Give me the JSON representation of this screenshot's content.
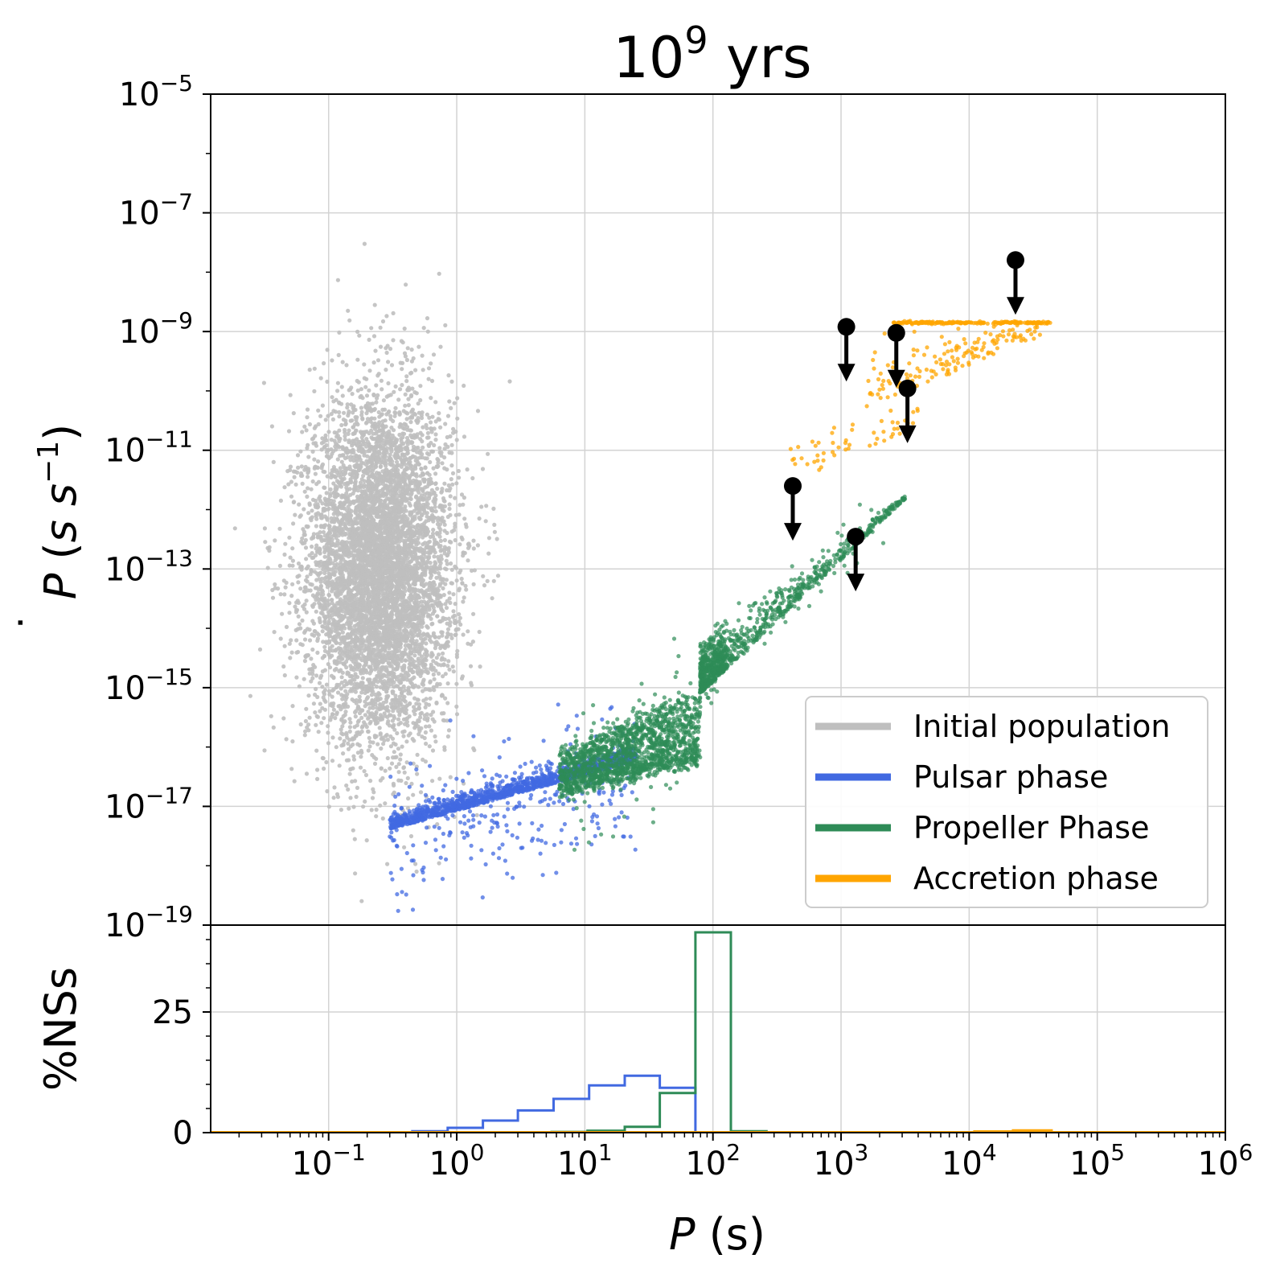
{
  "chart_data": {
    "title_base": "10",
    "title_exp": "9",
    "title_suffix": " yrs",
    "type": "scatter",
    "xlabel": {
      "var": "P",
      "unit": " (s)"
    },
    "ylabel_top": {
      "var": "P",
      "dot": "˙",
      "unit_open": " (",
      "unit": "s s",
      "unit_exp": "−1",
      "unit_close": ")"
    },
    "ylabel_bottom": "%NSs",
    "xlim": [
      0.012,
      1000000
    ],
    "ylim_top": [
      1e-19,
      1e-05
    ],
    "ylim_bottom": [
      0,
      43
    ],
    "x_ticks": [
      {
        "value": 0.1,
        "base": "10",
        "exp": "−1"
      },
      {
        "value": 1,
        "base": "10",
        "exp": "0"
      },
      {
        "value": 10,
        "base": "10",
        "exp": "1"
      },
      {
        "value": 100,
        "base": "10",
        "exp": "2"
      },
      {
        "value": 1000,
        "base": "10",
        "exp": "3"
      },
      {
        "value": 10000,
        "base": "10",
        "exp": "4"
      },
      {
        "value": 100000,
        "base": "10",
        "exp": "5"
      },
      {
        "value": 1000000,
        "base": "10",
        "exp": "6"
      }
    ],
    "y_ticks_top": [
      {
        "value": 1e-05,
        "base": "10",
        "exp": "−5"
      },
      {
        "value": 1e-07,
        "base": "10",
        "exp": "−7"
      },
      {
        "value": 1e-09,
        "base": "10",
        "exp": "−9"
      },
      {
        "value": 1e-11,
        "base": "10",
        "exp": "−11"
      },
      {
        "value": 1e-13,
        "base": "10",
        "exp": "−13"
      },
      {
        "value": 1e-15,
        "base": "10",
        "exp": "−15"
      },
      {
        "value": 1e-17,
        "base": "10",
        "exp": "−17"
      },
      {
        "value": 1e-19,
        "base": "10",
        "exp": "−19"
      }
    ],
    "y_ticks_bottom": [
      {
        "value": 0,
        "label": "0"
      },
      {
        "value": 25,
        "label": "25"
      }
    ],
    "legend": {
      "position": "lower-right",
      "entries": [
        {
          "label": "Initial population",
          "color": "#bfbfbf"
        },
        {
          "label": "Pulsar phase",
          "color": "#4169e1"
        },
        {
          "label": "Propeller Phase",
          "color": "#2e8b57"
        },
        {
          "label": "Accretion phase",
          "color": "#ffa500"
        }
      ]
    },
    "series": [
      {
        "name": "Initial population",
        "color": "#bfbfbf",
        "kind": "cloud",
        "logP_center": -0.6,
        "logP_sigma": 0.28,
        "logPdot_center": -13.0,
        "logPdot_sigma": 1.45,
        "count": 6500
      },
      {
        "name": "Pulsar phase",
        "color": "#4169e1",
        "kind": "band",
        "x_range": [
          0.3,
          25
        ],
        "pdot_range": [
          5e-18,
          3e-16
        ],
        "count": 1500
      },
      {
        "name": "Propeller Phase",
        "color": "#2e8b57",
        "kind": "band",
        "x_range": [
          6,
          4000
        ],
        "pdot_range": [
          2e-17,
          1e-11
        ],
        "count": 2600
      },
      {
        "name": "Accretion phase",
        "color": "#ffa500",
        "kind": "band",
        "x_range": [
          400,
          44000
        ],
        "pdot_range": [
          2e-11,
          1.4e-09
        ],
        "count": 420
      }
    ],
    "upper_limits": [
      {
        "P": 1100,
        "Pdot": 1.2e-09
      },
      {
        "P": 2700,
        "Pdot": 9.5e-10
      },
      {
        "P": 3300,
        "Pdot": 1.1e-10
      },
      {
        "P": 23000,
        "Pdot": 1.6e-08
      },
      {
        "P": 420,
        "Pdot": 2.5e-12
      },
      {
        "P": 1300,
        "Pdot": 3.5e-13
      }
    ],
    "histograms": [
      {
        "name": "Pulsar phase",
        "color": "#4169e1",
        "edges": [
          0.45,
          0.85,
          1.6,
          3.0,
          5.7,
          10.8,
          20.5,
          38.5,
          73
        ],
        "values": [
          0.3,
          1.0,
          2.5,
          4.6,
          7.0,
          9.8,
          11.8,
          9.3
        ]
      },
      {
        "name": "Propeller Phase",
        "color": "#2e8b57",
        "edges": [
          5.5,
          10.5,
          20.5,
          38.5,
          73,
          138,
          262
        ],
        "values": [
          0.15,
          0.4,
          1.2,
          8.2,
          41.5,
          0.3
        ]
      },
      {
        "name": "Accretion phase",
        "color": "#ffa500",
        "edges": [
          11000,
          22000,
          44000
        ],
        "values": [
          0.25,
          0.45
        ]
      }
    ]
  }
}
